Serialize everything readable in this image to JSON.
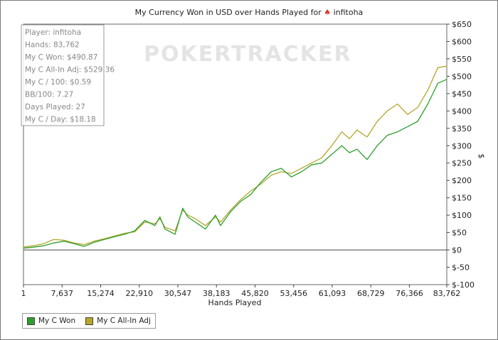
{
  "chart_data": {
    "type": "line",
    "title": "My Currency Won in USD over Hands Played for",
    "title_player": "infitoha",
    "xlabel": "Hands Played",
    "ylabel": "$",
    "x_ticks": [
      "1",
      "7,637",
      "15,274",
      "22,910",
      "30,547",
      "38,183",
      "45,820",
      "53,456",
      "61,093",
      "68,729",
      "76,366",
      "83,762"
    ],
    "x_tick_values": [
      1,
      7637,
      15274,
      22910,
      30547,
      38183,
      45820,
      53456,
      61093,
      68729,
      76366,
      83762
    ],
    "xlim": [
      1,
      83762
    ],
    "y_ticks": [
      "$650",
      "$600",
      "$550",
      "$500",
      "$450",
      "$400",
      "$350",
      "$300",
      "$250",
      "$200",
      "$150",
      "$100",
      "$50",
      "$0",
      "$-50",
      "$-100"
    ],
    "y_tick_values": [
      650,
      600,
      550,
      500,
      450,
      400,
      350,
      300,
      250,
      200,
      150,
      100,
      50,
      0,
      -50,
      -100
    ],
    "ylim": [
      -100,
      650
    ],
    "grid": false,
    "legend_position": "bottom-left",
    "series": [
      {
        "name": "My C Won",
        "color": "#2ca02c",
        "x": [
          1,
          2000,
          4000,
          6000,
          8000,
          10000,
          12000,
          14000,
          16000,
          18000,
          20000,
          22000,
          24000,
          26000,
          27000,
          28000,
          30000,
          31500,
          32500,
          34000,
          36000,
          38000,
          39000,
          41000,
          43000,
          45000,
          47000,
          49000,
          51000,
          53000,
          55000,
          57000,
          59000,
          61000,
          63000,
          64500,
          66000,
          68000,
          70000,
          72000,
          74000,
          76000,
          78000,
          80000,
          82000,
          83762
        ],
        "y": [
          5,
          8,
          12,
          20,
          25,
          18,
          10,
          22,
          30,
          38,
          45,
          55,
          85,
          70,
          95,
          60,
          45,
          120,
          95,
          80,
          60,
          100,
          70,
          110,
          140,
          160,
          195,
          225,
          235,
          210,
          225,
          245,
          250,
          275,
          300,
          280,
          290,
          260,
          300,
          330,
          340,
          355,
          370,
          420,
          480,
          491
        ]
      },
      {
        "name": "My C All-In Adj",
        "color": "#b5a62a",
        "x": [
          1,
          2000,
          4000,
          6000,
          8000,
          10000,
          12000,
          14000,
          16000,
          18000,
          20000,
          22000,
          24000,
          26000,
          27000,
          28000,
          30000,
          31500,
          32500,
          34000,
          36000,
          38000,
          39000,
          41000,
          43000,
          45000,
          47000,
          49000,
          51000,
          53000,
          55000,
          57000,
          59000,
          61000,
          63000,
          64500,
          66000,
          68000,
          70000,
          72000,
          74000,
          76000,
          78000,
          80000,
          82000,
          83762
        ],
        "y": [
          8,
          12,
          18,
          30,
          28,
          20,
          15,
          25,
          32,
          40,
          48,
          52,
          80,
          75,
          90,
          65,
          55,
          115,
          100,
          90,
          70,
          95,
          80,
          115,
          145,
          170,
          190,
          215,
          225,
          220,
          235,
          250,
          265,
          300,
          340,
          320,
          345,
          325,
          370,
          400,
          420,
          390,
          410,
          460,
          525,
          529
        ]
      }
    ]
  },
  "info_box": [
    "Player: infitoha",
    "Hands: 83,762",
    "My C Won: $490.87",
    "My C All-In Adj: $529.36",
    "My C / 100: $0.59",
    "BB/100: 7.27",
    "Days Played: 27",
    "My C / Day: $18.18"
  ],
  "watermark": "POKERTRACKER",
  "legend": {
    "won_label": "My C Won",
    "adj_label": "My C All-In Adj",
    "won_color": "#2ca02c",
    "adj_color": "#b5a62a"
  }
}
